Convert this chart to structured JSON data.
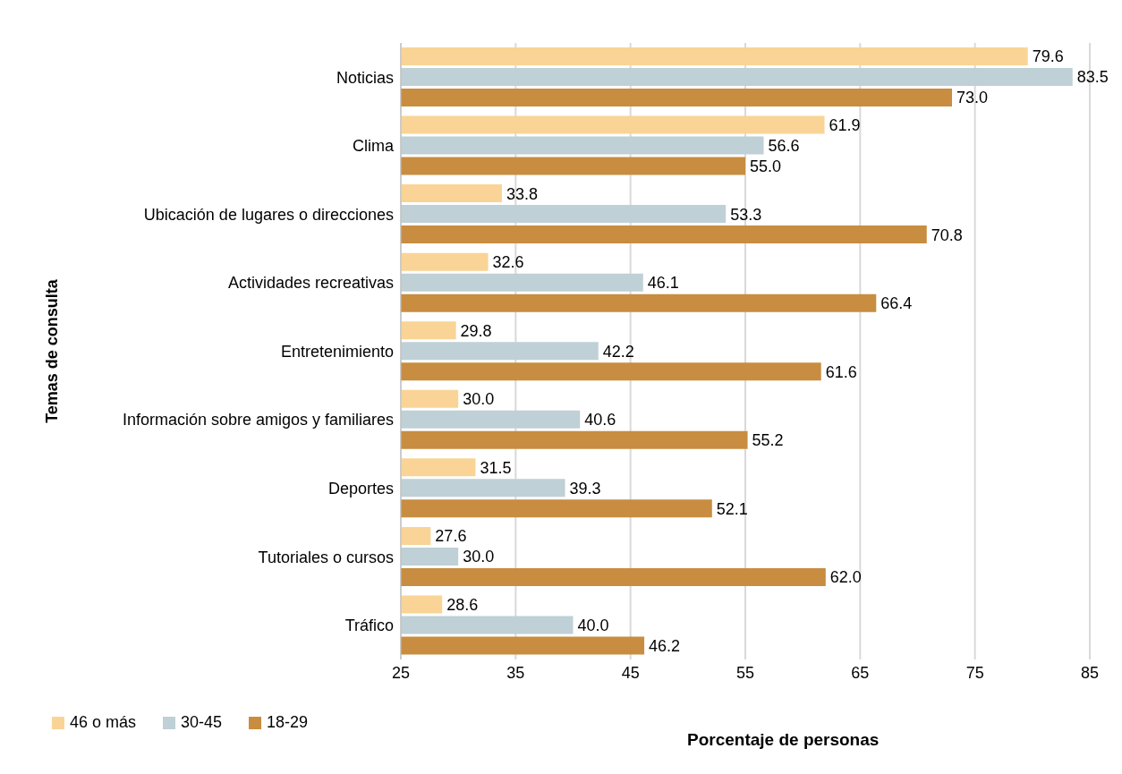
{
  "chart_data": {
    "type": "bar",
    "orientation": "horizontal",
    "xlabel": "Porcentaje de personas",
    "ylabel": "Temas de consulta",
    "categories": [
      "Noticias",
      "Clima",
      "Ubicación de lugares o direcciones",
      "Actividades recreativas",
      "Entretenimiento",
      "Información sobre amigos y familiares",
      "Deportes",
      "Tutoriales o cursos",
      "Tráfico"
    ],
    "series": [
      {
        "name": "46 o más",
        "color": "#f9d496",
        "values": [
          79.6,
          61.9,
          33.8,
          32.6,
          29.8,
          30,
          31.5,
          27.6,
          28.6
        ],
        "value_labels": [
          "79.6",
          "61.9",
          "33.8",
          "32.6",
          "29.8",
          "30.0",
          "31.5",
          "27.6",
          "28.6"
        ]
      },
      {
        "name": "30-45",
        "color": "#bfd0d6",
        "values": [
          83.5,
          56.6,
          53.3,
          46.1,
          42.2,
          40.6,
          39.3,
          30,
          40
        ],
        "value_labels": [
          "83.5",
          "56.6",
          "53.3",
          "46.1",
          "42.2",
          "40.6",
          "39.3",
          "30.0",
          "40.0"
        ]
      },
      {
        "name": "18-29",
        "color": "#c88d40",
        "values": [
          73,
          55,
          70.8,
          66.4,
          61.6,
          55.2,
          52.1,
          62,
          46.2
        ],
        "value_labels": [
          "73.0",
          "55.0",
          "70.8",
          "66.4",
          "61.6",
          "55.2",
          "52.1",
          "62.0",
          "46.2"
        ]
      }
    ],
    "xlim": [
      25,
      85
    ],
    "xticks": [
      25,
      35,
      45,
      55,
      65,
      75,
      85
    ],
    "grid": "x",
    "legend": "bottom left"
  }
}
